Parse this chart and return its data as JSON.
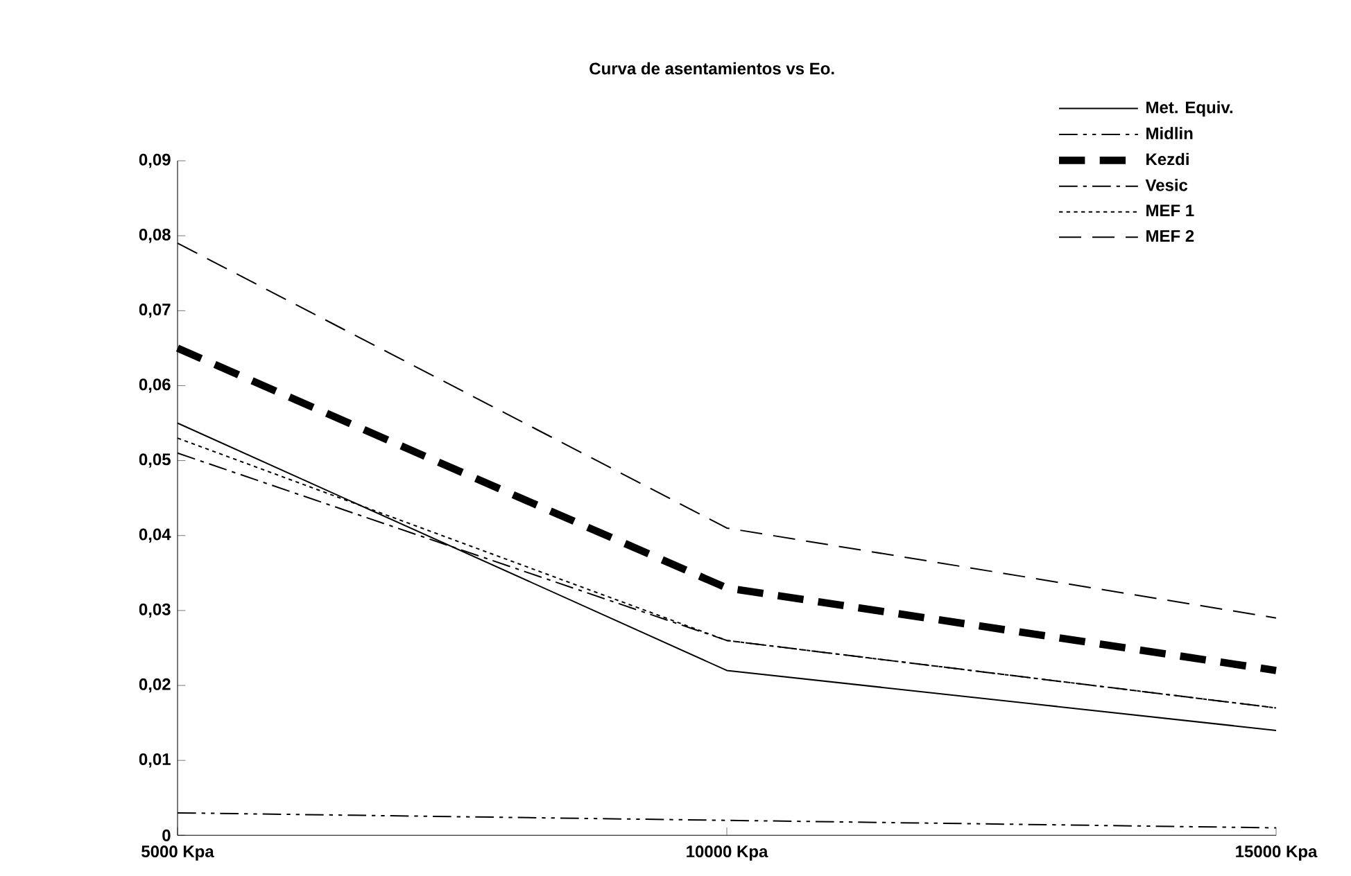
{
  "chart_data": {
    "type": "line",
    "title": "Curva de asentamientos vs Eo.",
    "categories": [
      "5000 Kpa",
      "10000 Kpa",
      "15000 Kpa"
    ],
    "series": [
      {
        "name": "Met. Equiv.",
        "color": "#000000",
        "line_style": "solid",
        "values": [
          0.055,
          0.022,
          0.014
        ]
      },
      {
        "name": "Midlin",
        "color": "#000000",
        "line_style": "dashdotdot",
        "values": [
          0.003,
          0.002,
          0.001
        ]
      },
      {
        "name": "Kezdi",
        "color": "#000000",
        "line_style": "thick dashed",
        "values": [
          0.065,
          0.033,
          0.022
        ]
      },
      {
        "name": "Vesic",
        "color": "#000000",
        "line_style": "dashdot",
        "values": [
          0.051,
          0.026,
          0.017
        ]
      },
      {
        "name": "MEF 1",
        "color": "#000000",
        "line_style": "dotted",
        "values": [
          0.053,
          0.026,
          0.017
        ]
      },
      {
        "name": "MEF 2",
        "color": "#000000",
        "line_style": "dashed",
        "values": [
          0.079,
          0.041,
          0.029
        ]
      }
    ],
    "ylim": [
      0,
      0.09
    ],
    "yticks": [
      {
        "value": 0,
        "label": "0"
      },
      {
        "value": 0.01,
        "label": "0,01"
      },
      {
        "value": 0.02,
        "label": "0,02"
      },
      {
        "value": 0.03,
        "label": "0,03"
      },
      {
        "value": 0.04,
        "label": "0,04"
      },
      {
        "value": 0.05,
        "label": "0,05"
      },
      {
        "value": 0.06,
        "label": "0,06"
      },
      {
        "value": 0.07,
        "label": "0,07"
      },
      {
        "value": 0.08,
        "label": "0,08"
      },
      {
        "value": 0.09,
        "label": "0,09"
      }
    ],
    "grid": false,
    "legend": "top right",
    "marker": "none"
  }
}
